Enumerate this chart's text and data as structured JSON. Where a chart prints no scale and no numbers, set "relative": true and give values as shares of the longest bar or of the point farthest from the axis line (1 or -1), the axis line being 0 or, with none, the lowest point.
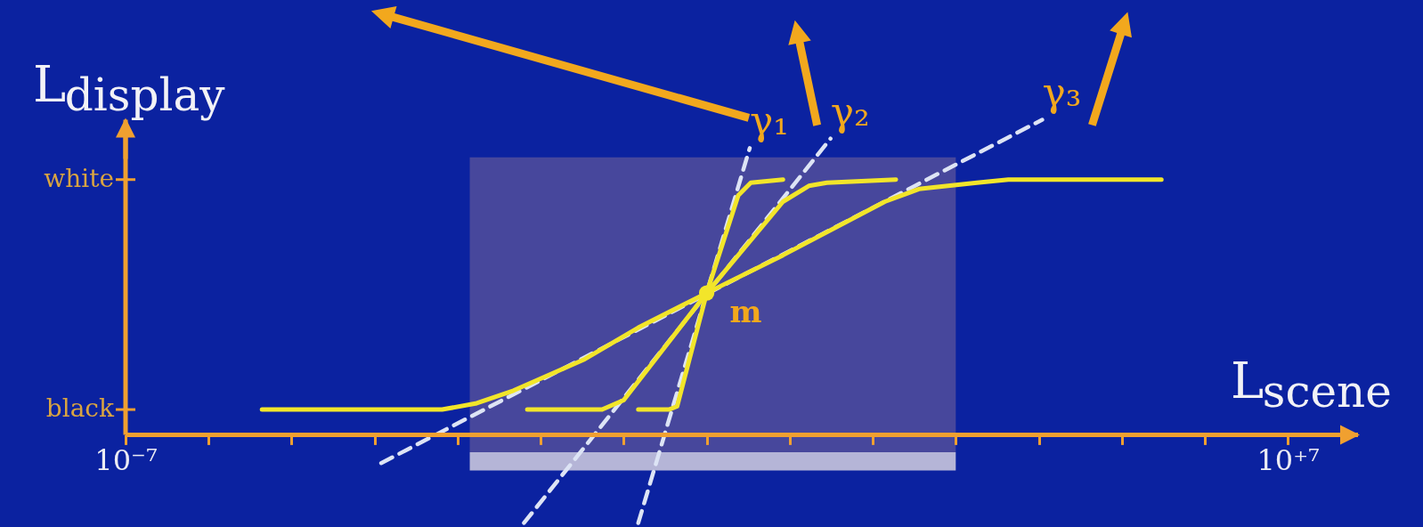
{
  "chart_data": {
    "type": "line",
    "relative": true,
    "xlabel": "L$_{scene}$",
    "ylabel": "L$_{display}$",
    "log": "x",
    "xlim": [
      1e-07,
      70000000.0
    ],
    "xticks": [
      {
        "value": 1e-07,
        "label": "10⁻⁷"
      },
      {
        "value": 1e-06,
        "label": null
      },
      {
        "value": 1e-05,
        "label": null
      },
      {
        "value": 0.0001,
        "label": null
      },
      {
        "value": 0.001,
        "label": null
      },
      {
        "value": 0.01,
        "label": null
      },
      {
        "value": 0.1,
        "label": null
      },
      {
        "value": 1,
        "label": null
      },
      {
        "value": 10,
        "label": null
      },
      {
        "value": 100,
        "label": null
      },
      {
        "value": 1000,
        "label": null
      },
      {
        "value": 10000.0,
        "label": null
      },
      {
        "value": 100000.0,
        "label": null
      },
      {
        "value": 1000000.0,
        "label": null
      },
      {
        "value": 10000000.0,
        "label": "10⁺⁷"
      }
    ],
    "annotations": [
      "white",
      "black"
    ],
    "line_style": "solid",
    "bands": [
      {
        "axis": "x",
        "from": 0.0014,
        "to": 1000,
        "color": "#47479c"
      }
    ],
    "series": [
      {
        "name": "γ₁",
        "line_style": "dashed",
        "color": "#dde4f5",
        "x": [
          0.15,
          3.3
        ],
        "values": [
          -0.28,
          0.91
        ]
      },
      {
        "name": "γ₂",
        "line_style": "dashed",
        "color": "#dde4f5",
        "x": [
          0.0063,
          31
        ],
        "values": [
          -0.28,
          0.94
        ]
      },
      {
        "name": "γ₃",
        "line_style": "dashed",
        "color": "#dde4f5",
        "x": [
          0.00012,
          11000
        ],
        "values": [
          -0.09,
          1
        ]
      },
      {
        "color": "#f2e52a",
        "x": [
          4.4e-06,
          0.00044,
          0.00065,
          0.0017,
          0.0047,
          0.034,
          0.15,
          1,
          8.3,
          140,
          360,
          1800,
          4300,
          300000.0
        ],
        "values": [
          0.08,
          0.08,
          0.08,
          0.1,
          0.14,
          0.24,
          0.34,
          0.45,
          0.57,
          0.74,
          0.78,
          0.8,
          0.81,
          0.81
        ]
      },
      {
        "color": "#f2e52a",
        "x": [
          0.0069,
          0.055,
          0.1,
          1,
          8.3,
          17,
          28,
          190
        ],
        "values": [
          0.08,
          0.08,
          0.11,
          0.45,
          0.74,
          0.79,
          0.8,
          0.81
        ]
      },
      {
        "color": "#f2e52a",
        "x": [
          0.15,
          0.35,
          0.44,
          1,
          2.4,
          3.4,
          8.3
        ],
        "values": [
          0.08,
          0.08,
          0.09,
          0.45,
          0.76,
          0.8,
          0.81
        ]
      },
      {
        "name": "m",
        "type": "scatter",
        "marker": "circle",
        "color": "#f2e52a",
        "x": [
          1
        ],
        "values": [
          0.45
        ]
      }
    ]
  }
}
